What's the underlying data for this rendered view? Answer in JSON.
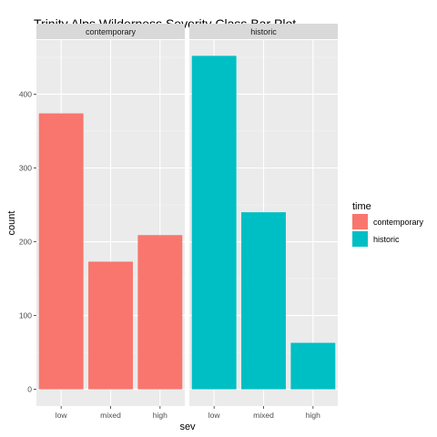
{
  "chart_data": {
    "type": "bar",
    "title": "Trinity Alps Wilderness Severity Class Bar Plot",
    "xlabel": "sev",
    "ylabel": "count",
    "categories": [
      "low",
      "mixed",
      "high"
    ],
    "ylim": [
      0,
      455
    ],
    "yticks": [
      0,
      100,
      200,
      300,
      400
    ],
    "grid": true,
    "legend": {
      "title": "time",
      "position": "right",
      "entries": [
        {
          "label": "contemporary",
          "color": "#F8766D"
        },
        {
          "label": "historic",
          "color": "#00BFC4"
        }
      ]
    },
    "panels": [
      {
        "label": "contemporary",
        "color": "#F8766D",
        "values": [
          374,
          173,
          209
        ]
      },
      {
        "label": "historic",
        "color": "#00BFC4",
        "values": [
          452,
          240,
          63
        ]
      }
    ]
  }
}
